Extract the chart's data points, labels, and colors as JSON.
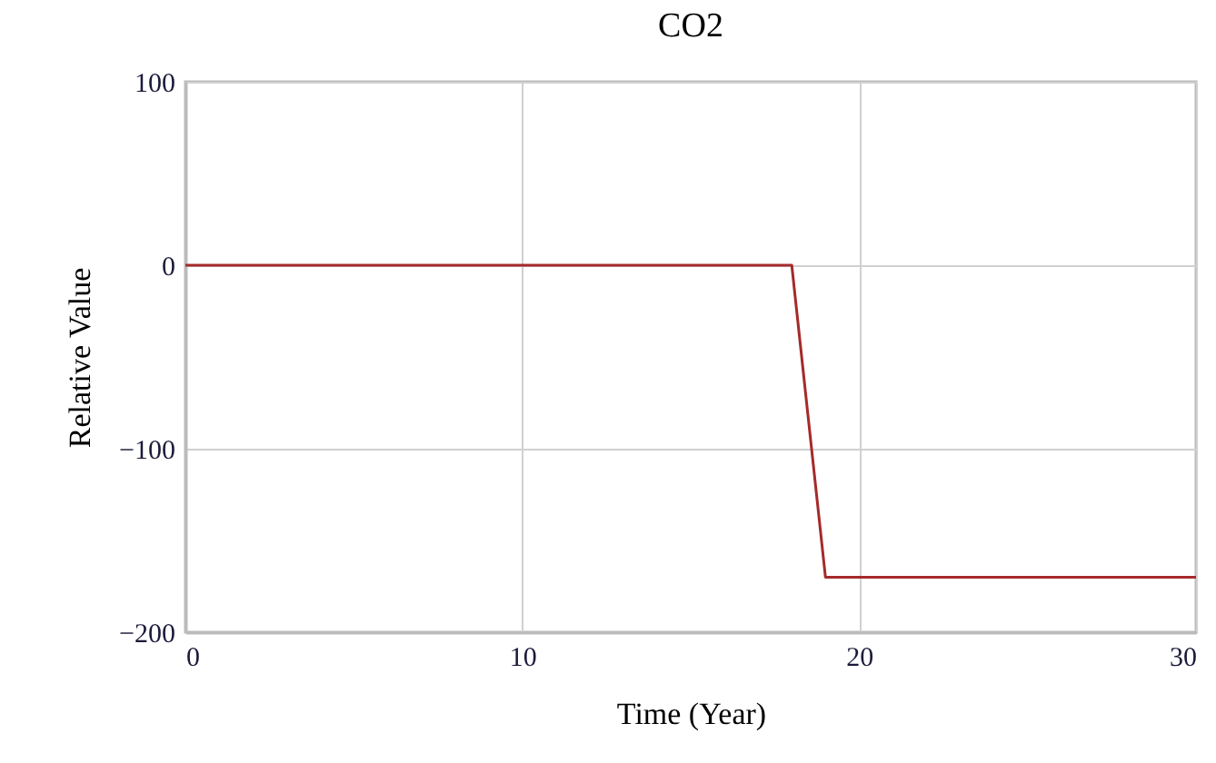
{
  "chart_data": {
    "type": "line",
    "title": "CO2",
    "xlabel": "Time (Year)",
    "ylabel": "Relative Value",
    "x": [
      0,
      18,
      19,
      30
    ],
    "series": [
      {
        "color": "#a52a2a",
        "values": [
          0,
          0,
          -170,
          -170
        ]
      }
    ],
    "xlim": [
      0,
      30
    ],
    "xticks": [
      0,
      10,
      20,
      30
    ],
    "ylim": [
      -200,
      100
    ],
    "yticks": [
      -200,
      -100,
      0,
      100
    ],
    "grid": true,
    "marker": "none",
    "line_style": "solid"
  }
}
